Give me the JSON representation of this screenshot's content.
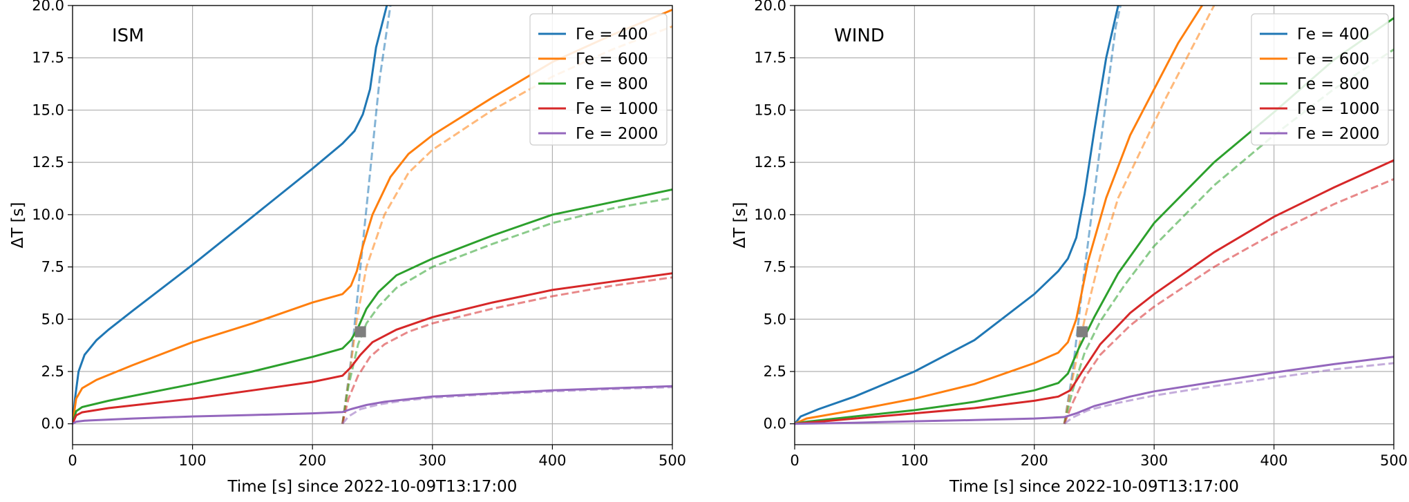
{
  "chart_data": [
    {
      "type": "line",
      "panel_label": "ISM",
      "xlabel": "Time [s] since 2022-10-09T13:17:00",
      "ylabel": "ΔT [s]",
      "xlim": [
        0,
        500
      ],
      "ylim": [
        -1,
        20
      ],
      "xticks": [
        "0",
        "100",
        "200",
        "300",
        "400",
        "500"
      ],
      "yticks": [
        "0.0",
        "2.5",
        "5.0",
        "7.5",
        "10.0",
        "12.5",
        "15.0",
        "17.5",
        "20.0"
      ],
      "grid": true,
      "legend_position": "top-right",
      "marker": {
        "shape": "square",
        "x": 240,
        "y": 4.4,
        "color": "#7f7f7f"
      },
      "series": [
        {
          "name": "Γe = 400",
          "color": "#1f77b4",
          "solid": [
            [
              0,
              0
            ],
            [
              2,
              1.2
            ],
            [
              5,
              2.5
            ],
            [
              10,
              3.3
            ],
            [
              20,
              4.0
            ],
            [
              30,
              4.5
            ],
            [
              50,
              5.4
            ],
            [
              100,
              7.6
            ],
            [
              150,
              9.9
            ],
            [
              200,
              12.2
            ],
            [
              225,
              13.4
            ],
            [
              235,
              14.0
            ],
            [
              242,
              14.8
            ],
            [
              248,
              16.0
            ],
            [
              253,
              18.0
            ],
            [
              262,
              20.0
            ]
          ],
          "dashed": [
            [
              225,
              0
            ],
            [
              232,
              3.0
            ],
            [
              240,
              7.5
            ],
            [
              248,
              12.0
            ],
            [
              256,
              16.5
            ],
            [
              265,
              20.0
            ]
          ]
        },
        {
          "name": "Γe = 600",
          "color": "#ff7f0e",
          "solid": [
            [
              0,
              0
            ],
            [
              3,
              1.2
            ],
            [
              8,
              1.7
            ],
            [
              20,
              2.1
            ],
            [
              50,
              2.8
            ],
            [
              100,
              3.9
            ],
            [
              150,
              4.8
            ],
            [
              200,
              5.8
            ],
            [
              225,
              6.2
            ],
            [
              232,
              6.6
            ],
            [
              237,
              7.3
            ],
            [
              242,
              8.5
            ],
            [
              250,
              10.0
            ],
            [
              265,
              11.8
            ],
            [
              280,
              12.9
            ],
            [
              300,
              13.8
            ],
            [
              350,
              15.6
            ],
            [
              400,
              17.3
            ],
            [
              450,
              18.6
            ],
            [
              500,
              19.8
            ]
          ],
          "dashed": [
            [
              225,
              0
            ],
            [
              230,
              2.0
            ],
            [
              237,
              5.0
            ],
            [
              245,
              7.5
            ],
            [
              260,
              10.0
            ],
            [
              280,
              12.0
            ],
            [
              300,
              13.1
            ],
            [
              350,
              15.0
            ],
            [
              400,
              16.6
            ],
            [
              450,
              17.9
            ],
            [
              500,
              19.0
            ]
          ]
        },
        {
          "name": "Γe = 800",
          "color": "#2ca02c",
          "solid": [
            [
              0,
              0
            ],
            [
              3,
              0.6
            ],
            [
              8,
              0.8
            ],
            [
              30,
              1.1
            ],
            [
              100,
              1.9
            ],
            [
              150,
              2.5
            ],
            [
              200,
              3.2
            ],
            [
              225,
              3.6
            ],
            [
              232,
              4.0
            ],
            [
              238,
              4.6
            ],
            [
              245,
              5.5
            ],
            [
              255,
              6.3
            ],
            [
              270,
              7.1
            ],
            [
              300,
              7.9
            ],
            [
              350,
              9.0
            ],
            [
              400,
              10.0
            ],
            [
              450,
              10.6
            ],
            [
              500,
              11.2
            ]
          ],
          "dashed": [
            [
              225,
              0
            ],
            [
              230,
              1.8
            ],
            [
              238,
              3.8
            ],
            [
              245,
              4.8
            ],
            [
              255,
              5.6
            ],
            [
              270,
              6.5
            ],
            [
              300,
              7.5
            ],
            [
              350,
              8.6
            ],
            [
              400,
              9.6
            ],
            [
              450,
              10.3
            ],
            [
              500,
              10.8
            ]
          ]
        },
        {
          "name": "Γe = 1000",
          "color": "#d62728",
          "solid": [
            [
              0,
              0
            ],
            [
              3,
              0.4
            ],
            [
              8,
              0.55
            ],
            [
              30,
              0.75
            ],
            [
              100,
              1.2
            ],
            [
              150,
              1.6
            ],
            [
              200,
              2.0
            ],
            [
              225,
              2.3
            ],
            [
              232,
              2.7
            ],
            [
              240,
              3.3
            ],
            [
              250,
              3.9
            ],
            [
              270,
              4.5
            ],
            [
              300,
              5.1
            ],
            [
              350,
              5.8
            ],
            [
              400,
              6.4
            ],
            [
              450,
              6.8
            ],
            [
              500,
              7.2
            ]
          ],
          "dashed": [
            [
              225,
              0
            ],
            [
              230,
              1.2
            ],
            [
              238,
              2.3
            ],
            [
              248,
              3.2
            ],
            [
              260,
              3.8
            ],
            [
              280,
              4.4
            ],
            [
              300,
              4.8
            ],
            [
              350,
              5.5
            ],
            [
              400,
              6.1
            ],
            [
              450,
              6.6
            ],
            [
              500,
              7.0
            ]
          ]
        },
        {
          "name": "Γe = 2000",
          "color": "#9467bd",
          "solid": [
            [
              0,
              0
            ],
            [
              3,
              0.1
            ],
            [
              10,
              0.15
            ],
            [
              50,
              0.25
            ],
            [
              100,
              0.35
            ],
            [
              150,
              0.42
            ],
            [
              200,
              0.5
            ],
            [
              225,
              0.56
            ],
            [
              232,
              0.7
            ],
            [
              245,
              0.9
            ],
            [
              260,
              1.05
            ],
            [
              300,
              1.3
            ],
            [
              350,
              1.45
            ],
            [
              400,
              1.6
            ],
            [
              450,
              1.7
            ],
            [
              500,
              1.8
            ]
          ],
          "dashed": [
            [
              225,
              0
            ],
            [
              230,
              0.35
            ],
            [
              240,
              0.7
            ],
            [
              255,
              0.92
            ],
            [
              275,
              1.1
            ],
            [
              300,
              1.25
            ],
            [
              350,
              1.42
            ],
            [
              400,
              1.55
            ],
            [
              450,
              1.66
            ],
            [
              500,
              1.75
            ]
          ]
        }
      ]
    },
    {
      "type": "line",
      "panel_label": "WIND",
      "xlabel": "Time [s] since 2022-10-09T13:17:00",
      "ylabel": "ΔT [s]",
      "xlim": [
        0,
        500
      ],
      "ylim": [
        -1,
        20
      ],
      "xticks": [
        "0",
        "100",
        "200",
        "300",
        "400",
        "500"
      ],
      "yticks": [
        "0.0",
        "2.5",
        "5.0",
        "7.5",
        "10.0",
        "12.5",
        "15.0",
        "17.5",
        "20.0"
      ],
      "grid": true,
      "legend_position": "top-right",
      "marker": {
        "shape": "square",
        "x": 240,
        "y": 4.4,
        "color": "#7f7f7f"
      },
      "series": [
        {
          "name": "Γe = 400",
          "color": "#1f77b4",
          "solid": [
            [
              0,
              0
            ],
            [
              5,
              0.35
            ],
            [
              20,
              0.7
            ],
            [
              50,
              1.3
            ],
            [
              100,
              2.5
            ],
            [
              150,
              4.0
            ],
            [
              200,
              6.2
            ],
            [
              220,
              7.3
            ],
            [
              228,
              7.9
            ],
            [
              235,
              8.9
            ],
            [
              242,
              11.0
            ],
            [
              250,
              14.0
            ],
            [
              260,
              17.5
            ],
            [
              270,
              20.0
            ]
          ],
          "dashed": [
            [
              225,
              0
            ],
            [
              232,
              2.5
            ],
            [
              240,
              6.5
            ],
            [
              250,
              11.0
            ],
            [
              260,
              15.5
            ],
            [
              268,
              19.0
            ],
            [
              272,
              20.0
            ]
          ]
        },
        {
          "name": "Γe = 600",
          "color": "#ff7f0e",
          "solid": [
            [
              0,
              0
            ],
            [
              10,
              0.25
            ],
            [
              50,
              0.65
            ],
            [
              100,
              1.2
            ],
            [
              150,
              1.9
            ],
            [
              200,
              2.9
            ],
            [
              220,
              3.4
            ],
            [
              228,
              3.9
            ],
            [
              235,
              5.0
            ],
            [
              245,
              7.8
            ],
            [
              260,
              10.8
            ],
            [
              280,
              13.8
            ],
            [
              300,
              16.0
            ],
            [
              320,
              18.2
            ],
            [
              340,
              20.0
            ]
          ],
          "dashed": [
            [
              225,
              0
            ],
            [
              232,
              2.2
            ],
            [
              242,
              5.0
            ],
            [
              255,
              8.0
            ],
            [
              270,
              10.8
            ],
            [
              290,
              13.2
            ],
            [
              310,
              15.6
            ],
            [
              330,
              17.8
            ],
            [
              350,
              20.0
            ]
          ]
        },
        {
          "name": "Γe = 800",
          "color": "#2ca02c",
          "solid": [
            [
              0,
              0
            ],
            [
              10,
              0.1
            ],
            [
              50,
              0.35
            ],
            [
              100,
              0.65
            ],
            [
              150,
              1.05
            ],
            [
              200,
              1.6
            ],
            [
              220,
              1.95
            ],
            [
              228,
              2.4
            ],
            [
              237,
              3.6
            ],
            [
              250,
              5.1
            ],
            [
              270,
              7.2
            ],
            [
              300,
              9.6
            ],
            [
              350,
              12.5
            ],
            [
              400,
              14.9
            ],
            [
              450,
              17.4
            ],
            [
              500,
              19.4
            ]
          ],
          "dashed": [
            [
              225,
              0
            ],
            [
              232,
              1.6
            ],
            [
              242,
              3.4
            ],
            [
              255,
              4.9
            ],
            [
              275,
              6.6
            ],
            [
              300,
              8.5
            ],
            [
              350,
              11.4
            ],
            [
              400,
              13.8
            ],
            [
              450,
              16.0
            ],
            [
              500,
              17.9
            ]
          ]
        },
        {
          "name": "Γe = 1000",
          "color": "#d62728",
          "solid": [
            [
              0,
              0
            ],
            [
              10,
              0.05
            ],
            [
              50,
              0.25
            ],
            [
              100,
              0.5
            ],
            [
              150,
              0.75
            ],
            [
              200,
              1.1
            ],
            [
              220,
              1.3
            ],
            [
              230,
              1.6
            ],
            [
              240,
              2.5
            ],
            [
              255,
              3.8
            ],
            [
              280,
              5.3
            ],
            [
              300,
              6.2
            ],
            [
              350,
              8.2
            ],
            [
              400,
              9.9
            ],
            [
              450,
              11.3
            ],
            [
              500,
              12.6
            ]
          ],
          "dashed": [
            [
              225,
              0
            ],
            [
              232,
              1.0
            ],
            [
              242,
              2.2
            ],
            [
              255,
              3.3
            ],
            [
              280,
              4.7
            ],
            [
              300,
              5.6
            ],
            [
              350,
              7.5
            ],
            [
              400,
              9.1
            ],
            [
              450,
              10.5
            ],
            [
              500,
              11.7
            ]
          ]
        },
        {
          "name": "Γe = 2000",
          "color": "#9467bd",
          "solid": [
            [
              0,
              0
            ],
            [
              50,
              0.05
            ],
            [
              100,
              0.12
            ],
            [
              150,
              0.18
            ],
            [
              200,
              0.25
            ],
            [
              225,
              0.32
            ],
            [
              235,
              0.5
            ],
            [
              250,
              0.85
            ],
            [
              280,
              1.3
            ],
            [
              300,
              1.55
            ],
            [
              350,
              2.0
            ],
            [
              400,
              2.45
            ],
            [
              450,
              2.85
            ],
            [
              500,
              3.2
            ]
          ],
          "dashed": [
            [
              225,
              0
            ],
            [
              232,
              0.3
            ],
            [
              245,
              0.65
            ],
            [
              270,
              1.0
            ],
            [
              300,
              1.35
            ],
            [
              350,
              1.8
            ],
            [
              400,
              2.2
            ],
            [
              450,
              2.6
            ],
            [
              500,
              2.9
            ]
          ]
        }
      ]
    }
  ]
}
